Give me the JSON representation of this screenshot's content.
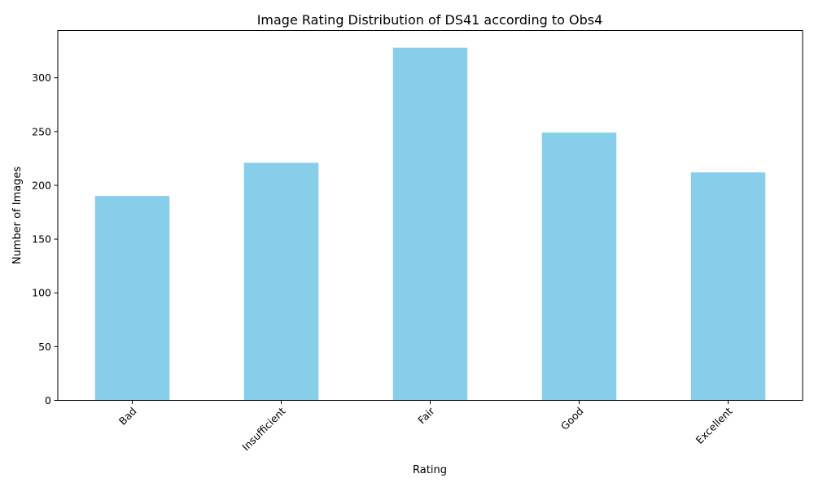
{
  "chart_data": {
    "type": "bar",
    "title": "Image Rating Distribution of DS41 according to Obs4",
    "xlabel": "Rating",
    "ylabel": "Number of Images",
    "categories": [
      "Bad",
      "Insufficient",
      "Fair",
      "Good",
      "Excellent"
    ],
    "values": [
      190,
      221,
      328,
      249,
      212
    ],
    "ylim": [
      0,
      344
    ],
    "yticks": [
      0,
      50,
      100,
      150,
      200,
      250,
      300
    ],
    "bar_color": "#87ceeb",
    "xtick_rotation_deg": 45,
    "grid": false,
    "legend": "none"
  }
}
